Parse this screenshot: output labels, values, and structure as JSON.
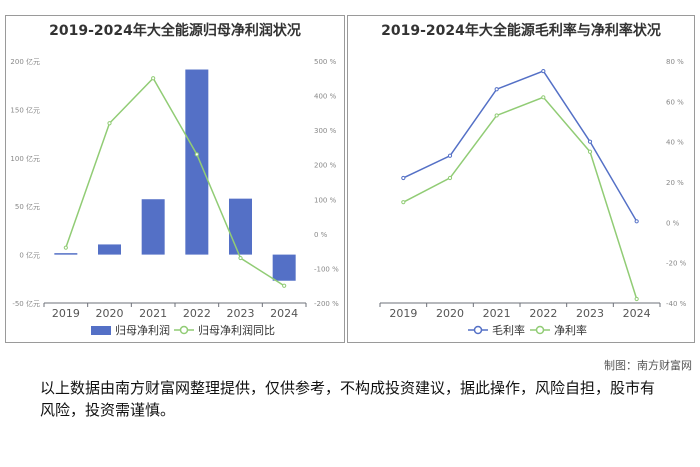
{
  "chart_data": [
    {
      "type": "bar",
      "title": "2019-2024年大全能源归母净利润状况",
      "categories": [
        "2019",
        "2020",
        "2021",
        "2022",
        "2023",
        "2024"
      ],
      "series": [
        {
          "name": "归母净利润",
          "type": "bar",
          "axis": "left",
          "color": "#5470c6",
          "values": [
            1.5,
            10.5,
            57.2,
            191.2,
            57.8,
            -27.0
          ]
        },
        {
          "name": "归母净利润同比",
          "type": "line",
          "axis": "right",
          "color": "#91cc75",
          "values": [
            -40,
            320,
            450,
            230,
            -70,
            -150
          ]
        }
      ],
      "y_left": {
        "min": -50,
        "max": 200,
        "ticks": [
          -50,
          0,
          50,
          100,
          150,
          200
        ],
        "tick_labels": [
          "-50 亿元",
          "0 亿元",
          "50 亿元",
          "100 亿元",
          "150 亿元",
          "200 亿元"
        ]
      },
      "y_right": {
        "min": -200,
        "max": 500,
        "ticks": [
          -200,
          -100,
          0,
          100,
          200,
          300,
          400,
          500
        ],
        "tick_labels": [
          "-200 %",
          "-100 %",
          "0 %",
          "100 %",
          "200 %",
          "300 %",
          "400 %",
          "500 %"
        ]
      },
      "legend": "bottom",
      "grid": false
    },
    {
      "type": "line",
      "title": "2019-2024年大全能源毛利率与净利率状况",
      "categories": [
        "2019",
        "2020",
        "2021",
        "2022",
        "2023",
        "2024"
      ],
      "series": [
        {
          "name": "毛利率",
          "color": "#5470c6",
          "values": [
            22,
            33,
            66,
            75,
            40,
            0.5
          ]
        },
        {
          "name": "净利率",
          "color": "#91cc75",
          "values": [
            10,
            22,
            53,
            62,
            35,
            -38
          ]
        }
      ],
      "y_right": {
        "min": -40,
        "max": 80,
        "ticks": [
          -40,
          -20,
          0,
          20,
          40,
          60,
          80
        ],
        "tick_labels": [
          "-40 %",
          "-20 %",
          "0 %",
          "20 %",
          "40 %",
          "60 %",
          "80 %"
        ]
      },
      "legend": "bottom",
      "grid": false
    }
  ],
  "footer": {
    "credit": "制图：南方财富网",
    "disclaimer": "以上数据由南方财富网整理提供，仅供参考，不构成投资建议，据此操作，风险自担，股市有风险，投资需谨慎。"
  }
}
